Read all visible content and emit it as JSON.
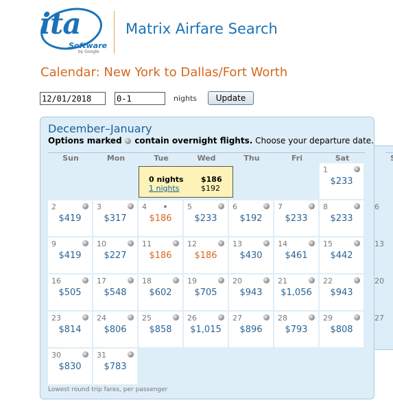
{
  "brand": {
    "logo_main": "ita",
    "logo_sub": "Software",
    "logo_by": "by Google",
    "app_title": "Matrix Airfare Search",
    "accent_color": "#1a73b8"
  },
  "page_title": "Calendar: New York to Dallas/Fort Worth",
  "controls": {
    "date_value": "12/01/2018",
    "nights_value": "0-1",
    "nights_label": "nights",
    "update_label": "Update"
  },
  "calendar": {
    "month_title": "December–January",
    "legend_prefix": "Options marked",
    "legend_bold_suffix": "contain overnight flights.",
    "legend_tail": "Choose your departure date.",
    "days_of_week": [
      "Sun",
      "Mon",
      "Tue",
      "Wed",
      "Thu",
      "Fri",
      "Sat"
    ],
    "next_dow": "Su",
    "cells": [
      {
        "day": "1",
        "price": "$233",
        "low": false,
        "overnight": true
      },
      {
        "day": "2",
        "price": "$419",
        "low": false,
        "overnight": true
      },
      {
        "day": "3",
        "price": "$317",
        "low": false,
        "overnight": true
      },
      {
        "day": "4",
        "price": "$186",
        "low": true,
        "overnight": false,
        "dot": true
      },
      {
        "day": "5",
        "price": "$233",
        "low": false,
        "overnight": true
      },
      {
        "day": "6",
        "price": "$192",
        "low": false,
        "overnight": true
      },
      {
        "day": "7",
        "price": "$233",
        "low": false,
        "overnight": true
      },
      {
        "day": "8",
        "price": "$233",
        "low": false,
        "overnight": true
      },
      {
        "day": "9",
        "price": "$419",
        "low": false,
        "overnight": true
      },
      {
        "day": "10",
        "price": "$227",
        "low": false,
        "overnight": true
      },
      {
        "day": "11",
        "price": "$186",
        "low": true,
        "overnight": true
      },
      {
        "day": "12",
        "price": "$186",
        "low": true,
        "overnight": true
      },
      {
        "day": "13",
        "price": "$430",
        "low": false,
        "overnight": true
      },
      {
        "day": "14",
        "price": "$461",
        "low": false,
        "overnight": true
      },
      {
        "day": "15",
        "price": "$442",
        "low": false,
        "overnight": true
      },
      {
        "day": "16",
        "price": "$505",
        "low": false,
        "overnight": true
      },
      {
        "day": "17",
        "price": "$548",
        "low": false,
        "overnight": true
      },
      {
        "day": "18",
        "price": "$602",
        "low": false,
        "overnight": true
      },
      {
        "day": "19",
        "price": "$705",
        "low": false,
        "overnight": true
      },
      {
        "day": "20",
        "price": "$943",
        "low": false,
        "overnight": true
      },
      {
        "day": "21",
        "price": "$1,056",
        "low": false,
        "overnight": true
      },
      {
        "day": "22",
        "price": "$943",
        "low": false,
        "overnight": true
      },
      {
        "day": "23",
        "price": "$814",
        "low": false,
        "overnight": true
      },
      {
        "day": "24",
        "price": "$806",
        "low": false,
        "overnight": true
      },
      {
        "day": "25",
        "price": "$858",
        "low": false,
        "overnight": true
      },
      {
        "day": "26",
        "price": "$1,015",
        "low": false,
        "overnight": true
      },
      {
        "day": "27",
        "price": "$896",
        "low": false,
        "overnight": true
      },
      {
        "day": "28",
        "price": "$793",
        "low": false,
        "overnight": true
      },
      {
        "day": "29",
        "price": "$808",
        "low": false,
        "overnight": true
      },
      {
        "day": "30",
        "price": "$830",
        "low": false,
        "overnight": true
      },
      {
        "day": "31",
        "price": "$783",
        "low": false,
        "overnight": true
      }
    ],
    "next_month_days": [
      "6",
      "13",
      "20",
      "27"
    ],
    "tooltip": {
      "row1_label": "0 nights",
      "row1_price": "$186",
      "row2_label": "1 nights",
      "row2_price": "$192"
    },
    "footnote": "Lowest round trip fares, per passenger"
  }
}
